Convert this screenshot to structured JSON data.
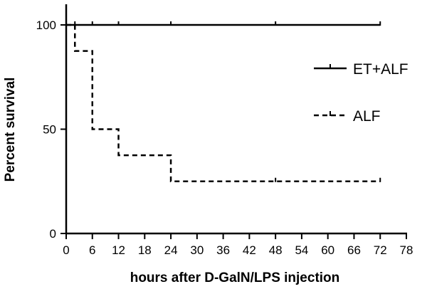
{
  "chart_data": {
    "type": "line",
    "title": "",
    "xlabel": "hours after D-GalN/LPS injection",
    "ylabel": "Percent survival",
    "xlim": [
      0,
      78
    ],
    "ylim": [
      0,
      100
    ],
    "x_ticks": [
      0,
      6,
      12,
      18,
      24,
      30,
      36,
      42,
      48,
      54,
      60,
      66,
      72,
      78
    ],
    "y_ticks": [
      0,
      50,
      100
    ],
    "grid": false,
    "legend_position": "right",
    "series": [
      {
        "name": "ET+ALF",
        "style": "solid",
        "color": "#000000",
        "steps": [
          [
            0,
            100
          ],
          [
            72,
            100
          ]
        ],
        "censor_marks": [
          [
            2,
            100
          ],
          [
            6,
            100
          ],
          [
            12,
            100
          ],
          [
            24,
            100
          ],
          [
            48,
            100
          ],
          [
            72,
            100
          ]
        ]
      },
      {
        "name": "ALF",
        "style": "dashed",
        "color": "#000000",
        "steps": [
          [
            0,
            100
          ],
          [
            2,
            87.5
          ],
          [
            6,
            50
          ],
          [
            12,
            37.5
          ],
          [
            24,
            25
          ],
          [
            72,
            25
          ]
        ],
        "censor_marks": [
          [
            48,
            25
          ],
          [
            72,
            25
          ]
        ]
      }
    ]
  }
}
